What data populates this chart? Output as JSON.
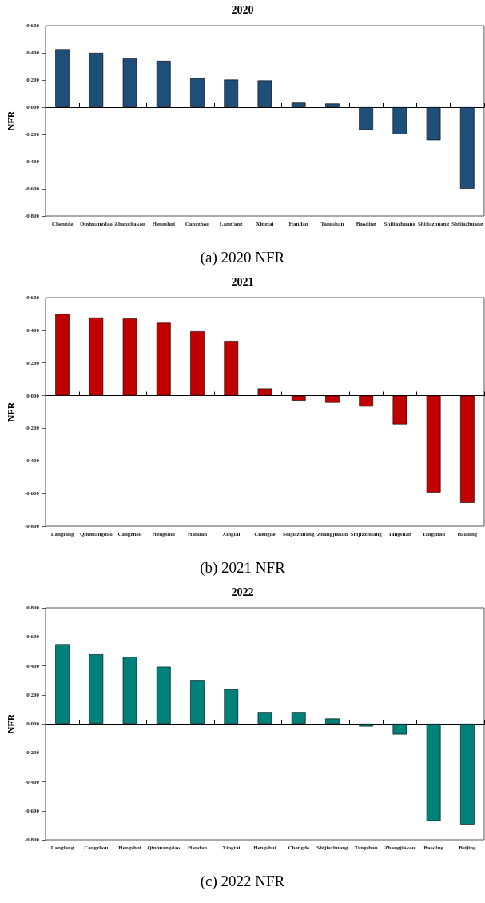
{
  "chart_data": [
    {
      "type": "bar",
      "title": "2020",
      "ylabel": "NFR",
      "annotations": [
        "(a) 2020 NFR"
      ],
      "categories": [
        "Chengde",
        "Qinhuangdao",
        "Zhangjiakou",
        "Hengshui",
        "Cangzhou",
        "Langfang",
        "Xingtai",
        "Handan",
        "Tangshan",
        "Baoding",
        "Shijiazhuang",
        "Shijiazhuang",
        "Shijiazhuang"
      ],
      "values": [
        0.427,
        0.4,
        0.358,
        0.341,
        0.214,
        0.203,
        0.197,
        0.033,
        0.027,
        -0.166,
        -0.199,
        -0.243,
        -0.599
      ],
      "color": "#1f4e79",
      "ylim": [
        -0.8,
        0.6
      ],
      "yticks": [
        {
          "value": -0.8,
          "label": "-0.800"
        },
        {
          "value": -0.6,
          "label": "-0.600"
        },
        {
          "value": -0.4,
          "label": "-0.400"
        },
        {
          "value": -0.2,
          "label": "-0.200"
        },
        {
          "value": 0,
          "label": "0.000"
        },
        {
          "value": 0.2,
          "label": "0.200"
        },
        {
          "value": 0.4,
          "label": "0.400"
        },
        {
          "value": 0.6,
          "label": "0.600"
        }
      ]
    },
    {
      "type": "bar",
      "title": "2021",
      "ylabel": "NFR",
      "annotations": [
        "(b) 2021 NFR"
      ],
      "categories": [
        "Langfang",
        "Qinhuangdao",
        "Cangzhou",
        "Hengshui",
        "Handan",
        "Xingtai",
        "Chengde",
        "Shijiazhuang",
        "Zhangjiakou",
        "Shijiazhuang",
        "Tangshan",
        "Tangshan",
        "Baoding"
      ],
      "values": [
        0.5,
        0.478,
        0.472,
        0.446,
        0.394,
        0.335,
        0.044,
        -0.031,
        -0.044,
        -0.067,
        -0.176,
        -0.593,
        -0.657
      ],
      "color": "#c00000",
      "ylim": [
        -0.8,
        0.6
      ],
      "yticks": [
        {
          "value": -0.8,
          "label": "-0.800"
        },
        {
          "value": -0.6,
          "label": "-0.600"
        },
        {
          "value": -0.4,
          "label": "-0.400"
        },
        {
          "value": -0.2,
          "label": "-0.200"
        },
        {
          "value": 0,
          "label": "0.000"
        },
        {
          "value": 0.2,
          "label": "0.200"
        },
        {
          "value": 0.4,
          "label": "0.400"
        },
        {
          "value": 0.6,
          "label": "0.600"
        }
      ]
    },
    {
      "type": "bar",
      "title": "2022",
      "ylabel": "NFR",
      "annotations": [
        "(c) 2022 NFR"
      ],
      "categories": [
        "Langfang",
        "Cangzhou",
        "Hengshui",
        "Qinhuangdao",
        "Handan",
        "Xingtai",
        "Hengshui",
        "Chengde",
        "Shijiazhuang",
        "Tangshan",
        "Zhangjiakou",
        "Baoding",
        "Beijing"
      ],
      "values": [
        0.549,
        0.479,
        0.462,
        0.394,
        0.302,
        0.238,
        0.081,
        0.081,
        0.036,
        -0.019,
        -0.074,
        -0.67,
        -0.694
      ],
      "color": "#00807a",
      "ylim": [
        -0.8,
        0.8
      ],
      "yticks": [
        {
          "value": -0.8,
          "label": "-0.800"
        },
        {
          "value": -0.6,
          "label": "-0.600"
        },
        {
          "value": -0.4,
          "label": "-0.400"
        },
        {
          "value": -0.2,
          "label": "-0.200"
        },
        {
          "value": 0,
          "label": "0.000"
        },
        {
          "value": 0.2,
          "label": "0.200"
        },
        {
          "value": 0.4,
          "label": "0.400"
        },
        {
          "value": 0.6,
          "label": "0.600"
        },
        {
          "value": 0.8,
          "label": "0.800"
        }
      ]
    }
  ]
}
